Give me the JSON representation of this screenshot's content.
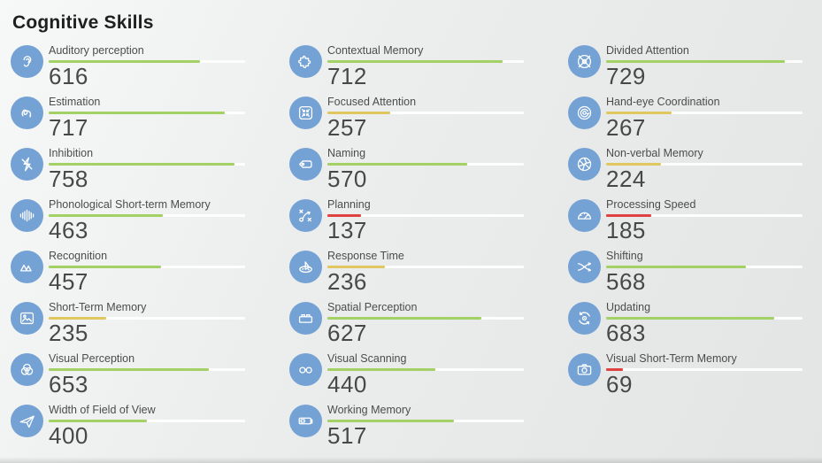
{
  "page": {
    "title": "Cognitive Skills"
  },
  "scale": {
    "max": 800
  },
  "colors": {
    "green": "#a4d166",
    "yellow": "#e1c75f",
    "red": "#e04242",
    "icon_bg": "#75a2d4",
    "bar_track": "#ffffff"
  },
  "skills": [
    {
      "label": "Auditory perception",
      "value": 616,
      "level": "green",
      "icon": "ear-icon"
    },
    {
      "label": "Contextual Memory",
      "value": 712,
      "level": "green",
      "icon": "puzzle-icon"
    },
    {
      "label": "Divided Attention",
      "value": 729,
      "level": "green",
      "icon": "crossed-target-icon"
    },
    {
      "label": "Estimation",
      "value": 717,
      "level": "green",
      "icon": "squiggle-icon"
    },
    {
      "label": "Focused Attention",
      "value": 257,
      "level": "yellow",
      "icon": "compress-arrows-icon"
    },
    {
      "label": "Hand-eye Coordination",
      "value": 267,
      "level": "yellow",
      "icon": "orbit-arrow-icon"
    },
    {
      "label": "Inhibition",
      "value": 758,
      "level": "green",
      "icon": "no-lightning-icon"
    },
    {
      "label": "Naming",
      "value": 570,
      "level": "green",
      "icon": "tag-icon"
    },
    {
      "label": "Non-verbal Memory",
      "value": 224,
      "level": "yellow",
      "icon": "aperture-icon"
    },
    {
      "label": "Phonological Short-term Memory",
      "value": 463,
      "level": "green",
      "icon": "sound-wave-icon"
    },
    {
      "label": "Planning",
      "value": 137,
      "level": "red",
      "icon": "strategy-icon"
    },
    {
      "label": "Processing Speed",
      "value": 185,
      "level": "red",
      "icon": "speedometer-icon"
    },
    {
      "label": "Recognition",
      "value": 457,
      "level": "green",
      "icon": "mountains-icon"
    },
    {
      "label": "Response Time",
      "value": 236,
      "level": "yellow",
      "icon": "sundial-icon"
    },
    {
      "label": "Shifting",
      "value": 568,
      "level": "green",
      "icon": "shuffle-icon"
    },
    {
      "label": "Short-Term Memory",
      "value": 235,
      "level": "yellow",
      "icon": "photo-icon"
    },
    {
      "label": "Spatial Perception",
      "value": 627,
      "level": "green",
      "icon": "brick-icon"
    },
    {
      "label": "Updating",
      "value": 683,
      "level": "green",
      "icon": "refresh-icon"
    },
    {
      "label": "Visual Perception",
      "value": 653,
      "level": "green",
      "icon": "venn-circles-icon"
    },
    {
      "label": "Visual Scanning",
      "value": 440,
      "level": "green",
      "icon": "glasses-icon"
    },
    {
      "label": "Visual Short-Term Memory",
      "value": 69,
      "level": "red",
      "icon": "camera-icon"
    },
    {
      "label": "Width of Field of View",
      "value": 400,
      "level": "green",
      "icon": "paper-plane-icon"
    },
    {
      "label": "Working Memory",
      "value": 517,
      "level": "green",
      "icon": "battery-icon"
    }
  ]
}
